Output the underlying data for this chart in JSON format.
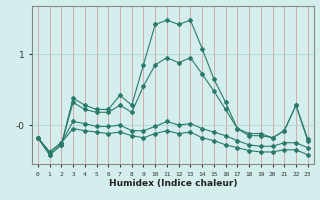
{
  "xlabel": "Humidex (Indice chaleur)",
  "ylabel": "",
  "background_color": "#d4eeed",
  "grid_color": "#b0d8d5",
  "line_color": "#2a7a6a",
  "x": [
    0,
    1,
    2,
    3,
    4,
    5,
    6,
    7,
    8,
    9,
    10,
    11,
    12,
    13,
    14,
    15,
    16,
    17,
    18,
    19,
    20,
    21,
    22,
    23
  ],
  "series1": [
    -0.18,
    -0.42,
    -0.28,
    0.38,
    0.28,
    0.22,
    0.22,
    0.42,
    0.28,
    0.85,
    1.42,
    1.48,
    1.42,
    1.48,
    1.08,
    0.65,
    0.32,
    -0.05,
    -0.12,
    -0.12,
    -0.18,
    -0.08,
    0.28,
    -0.2
  ],
  "series2": [
    -0.18,
    -0.42,
    -0.28,
    0.32,
    0.22,
    0.18,
    0.18,
    0.28,
    0.18,
    0.55,
    0.85,
    0.95,
    0.88,
    0.95,
    0.72,
    0.48,
    0.22,
    -0.05,
    -0.15,
    -0.15,
    -0.18,
    -0.08,
    0.28,
    -0.22
  ],
  "series3": [
    -0.18,
    -0.38,
    -0.25,
    0.05,
    0.02,
    -0.02,
    -0.02,
    0.0,
    -0.08,
    -0.08,
    -0.02,
    0.05,
    0.0,
    0.02,
    -0.05,
    -0.1,
    -0.15,
    -0.22,
    -0.28,
    -0.3,
    -0.3,
    -0.25,
    -0.25,
    -0.32
  ],
  "series4": [
    -0.18,
    -0.38,
    -0.25,
    -0.05,
    -0.08,
    -0.1,
    -0.12,
    -0.1,
    -0.15,
    -0.18,
    -0.12,
    -0.08,
    -0.12,
    -0.1,
    -0.18,
    -0.22,
    -0.28,
    -0.32,
    -0.36,
    -0.38,
    -0.38,
    -0.35,
    -0.35,
    -0.42
  ],
  "ylim": [
    -0.55,
    1.68
  ],
  "figsize": [
    3.2,
    2.0
  ],
  "dpi": 100
}
